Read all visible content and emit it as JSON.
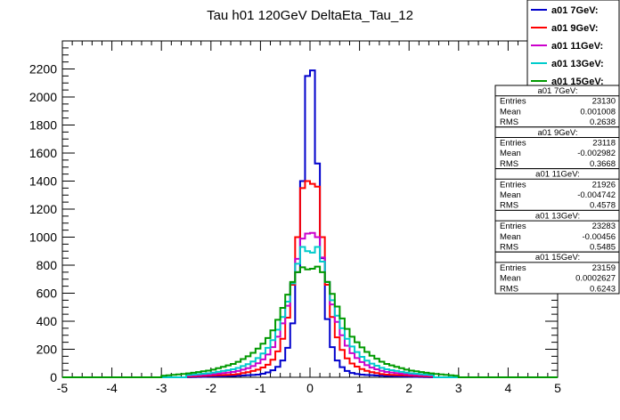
{
  "chart_data": {
    "type": "line",
    "title": "Tau h01 120GeV DeltaEta_Tau_12",
    "xlabel": "",
    "ylabel": "",
    "xlim": [
      -5,
      5
    ],
    "ylim": [
      0,
      2400
    ],
    "xticks": [
      -5,
      -4,
      -3,
      -2,
      -1,
      0,
      1,
      2,
      3,
      4,
      5
    ],
    "xtick_labels": [
      "-5",
      "-4",
      "-3",
      "-2",
      "-1",
      "0",
      "1",
      "2",
      "3",
      "4",
      "5"
    ],
    "yticks": [
      0,
      200,
      400,
      600,
      800,
      1000,
      1200,
      1400,
      1600,
      1800,
      2000,
      2200
    ],
    "ytick_labels": [
      "0",
      "200",
      "400",
      "600",
      "800",
      "1000",
      "1200",
      "1400",
      "1600",
      "1800",
      "2000",
      "2200"
    ],
    "legend_position": "top-right",
    "bin_width": 0.1,
    "series": [
      {
        "name": "a01 7GeV:",
        "color": "#0000cc",
        "points": [
          [
            -2.5,
            0
          ],
          [
            -1.5,
            10
          ],
          [
            -1.0,
            20
          ],
          [
            -0.8,
            40
          ],
          [
            -0.7,
            60
          ],
          [
            -0.6,
            90
          ],
          [
            -0.5,
            150
          ],
          [
            -0.4,
            270
          ],
          [
            -0.3,
            500
          ],
          [
            -0.2,
            1000
          ],
          [
            -0.1,
            1800
          ],
          [
            -0.05,
            2150
          ],
          [
            0.0,
            2050
          ],
          [
            0.05,
            2190
          ],
          [
            0.1,
            1900
          ],
          [
            0.2,
            1150
          ],
          [
            0.3,
            550
          ],
          [
            0.4,
            280
          ],
          [
            0.5,
            150
          ],
          [
            0.6,
            90
          ],
          [
            0.7,
            55
          ],
          [
            0.8,
            35
          ],
          [
            1.0,
            20
          ],
          [
            1.5,
            10
          ],
          [
            2.5,
            0
          ]
        ],
        "stats": {
          "header": "a01 7GeV:",
          "entries": "23130",
          "mean": "0.001008",
          "rms": "0.2638"
        }
      },
      {
        "name": "a01 9GeV:",
        "color": "#ff0000",
        "points": [
          [
            -2.5,
            5
          ],
          [
            -1.5,
            20
          ],
          [
            -1.2,
            40
          ],
          [
            -1.0,
            60
          ],
          [
            -0.8,
            100
          ],
          [
            -0.7,
            150
          ],
          [
            -0.6,
            220
          ],
          [
            -0.5,
            330
          ],
          [
            -0.4,
            520
          ],
          [
            -0.3,
            800
          ],
          [
            -0.2,
            1200
          ],
          [
            -0.1,
            1500
          ],
          [
            -0.05,
            1400
          ],
          [
            0.0,
            1350
          ],
          [
            0.05,
            1380
          ],
          [
            0.1,
            1520
          ],
          [
            0.2,
            1200
          ],
          [
            0.3,
            800
          ],
          [
            0.4,
            520
          ],
          [
            0.5,
            340
          ],
          [
            0.6,
            230
          ],
          [
            0.7,
            160
          ],
          [
            0.8,
            110
          ],
          [
            1.0,
            65
          ],
          [
            1.2,
            40
          ],
          [
            1.5,
            20
          ],
          [
            2.5,
            5
          ]
        ],
        "stats": {
          "header": "a01 9GeV:",
          "entries": "23118",
          "mean": "-0.002982",
          "rms": "0.3668"
        }
      },
      {
        "name": "a01 11GeV:",
        "color": "#cc00cc",
        "points": [
          [
            -2.5,
            10
          ],
          [
            -2.0,
            20
          ],
          [
            -1.5,
            40
          ],
          [
            -1.2,
            70
          ],
          [
            -1.0,
            110
          ],
          [
            -0.8,
            180
          ],
          [
            -0.7,
            250
          ],
          [
            -0.6,
            330
          ],
          [
            -0.5,
            440
          ],
          [
            -0.4,
            580
          ],
          [
            -0.3,
            760
          ],
          [
            -0.2,
            930
          ],
          [
            -0.1,
            1050
          ],
          [
            0.0,
            1000
          ],
          [
            0.1,
            1060
          ],
          [
            0.2,
            940
          ],
          [
            0.3,
            770
          ],
          [
            0.4,
            590
          ],
          [
            0.5,
            450
          ],
          [
            0.6,
            340
          ],
          [
            0.7,
            260
          ],
          [
            0.8,
            190
          ],
          [
            1.0,
            120
          ],
          [
            1.2,
            75
          ],
          [
            1.5,
            40
          ],
          [
            2.0,
            20
          ],
          [
            2.5,
            10
          ]
        ],
        "stats": {
          "header": "a01 11GeV:",
          "entries": "21926",
          "mean": "-0.004742",
          "rms": "0.4578"
        }
      },
      {
        "name": "a01 13GeV:",
        "color": "#00cccc",
        "points": [
          [
            -2.5,
            15
          ],
          [
            -2.0,
            30
          ],
          [
            -1.5,
            60
          ],
          [
            -1.2,
            100
          ],
          [
            -1.0,
            150
          ],
          [
            -0.8,
            230
          ],
          [
            -0.7,
            300
          ],
          [
            -0.6,
            380
          ],
          [
            -0.5,
            480
          ],
          [
            -0.4,
            600
          ],
          [
            -0.3,
            740
          ],
          [
            -0.2,
            880
          ],
          [
            -0.1,
            980
          ],
          [
            0.0,
            820
          ],
          [
            0.1,
            960
          ],
          [
            0.2,
            900
          ],
          [
            0.3,
            750
          ],
          [
            0.4,
            610
          ],
          [
            0.5,
            490
          ],
          [
            0.6,
            390
          ],
          [
            0.7,
            310
          ],
          [
            0.8,
            240
          ],
          [
            1.0,
            160
          ],
          [
            1.2,
            105
          ],
          [
            1.5,
            60
          ],
          [
            2.0,
            30
          ],
          [
            2.5,
            15
          ]
        ],
        "stats": {
          "header": "a01 13GeV:",
          "entries": "23283",
          "mean": "-0.00456",
          "rms": "0.5485"
        }
      },
      {
        "name": "a01 15GeV:",
        "color": "#009900",
        "points": [
          [
            -3.0,
            10
          ],
          [
            -2.5,
            25
          ],
          [
            -2.0,
            50
          ],
          [
            -1.5,
            100
          ],
          [
            -1.2,
            160
          ],
          [
            -1.0,
            220
          ],
          [
            -0.8,
            300
          ],
          [
            -0.7,
            370
          ],
          [
            -0.6,
            450
          ],
          [
            -0.5,
            540
          ],
          [
            -0.4,
            640
          ],
          [
            -0.3,
            720
          ],
          [
            -0.2,
            780
          ],
          [
            -0.1,
            790
          ],
          [
            0.0,
            750
          ],
          [
            0.1,
            800
          ],
          [
            0.2,
            780
          ],
          [
            0.3,
            720
          ],
          [
            0.4,
            640
          ],
          [
            0.5,
            550
          ],
          [
            0.6,
            460
          ],
          [
            0.7,
            380
          ],
          [
            0.8,
            310
          ],
          [
            1.0,
            230
          ],
          [
            1.2,
            165
          ],
          [
            1.5,
            100
          ],
          [
            2.0,
            50
          ],
          [
            2.5,
            25
          ],
          [
            3.0,
            10
          ]
        ],
        "stats": {
          "header": "a01 15GeV:",
          "entries": "23159",
          "mean": "0.0002627",
          "rms": "0.6243"
        }
      }
    ],
    "stats_labels": {
      "entries": "Entries",
      "mean": "Mean",
      "rms": "RMS"
    }
  }
}
